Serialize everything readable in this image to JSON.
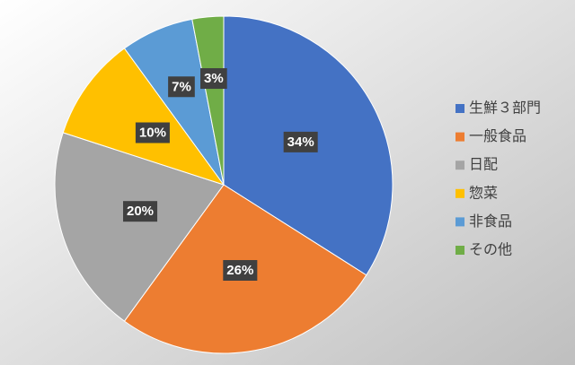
{
  "chart_data": {
    "type": "pie",
    "categories": [
      "生鮮３部門",
      "一般食品",
      "日配",
      "惣菜",
      "非食品",
      "その他"
    ],
    "values": [
      34,
      26,
      20,
      10,
      7,
      3
    ],
    "value_labels": [
      "34%",
      "26%",
      "20%",
      "10%",
      "7%",
      "3%"
    ],
    "colors": [
      "#4472c4",
      "#ed7d31",
      "#a5a5a5",
      "#ffc000",
      "#5b9bd5",
      "#70ad47"
    ],
    "legend": "right"
  }
}
